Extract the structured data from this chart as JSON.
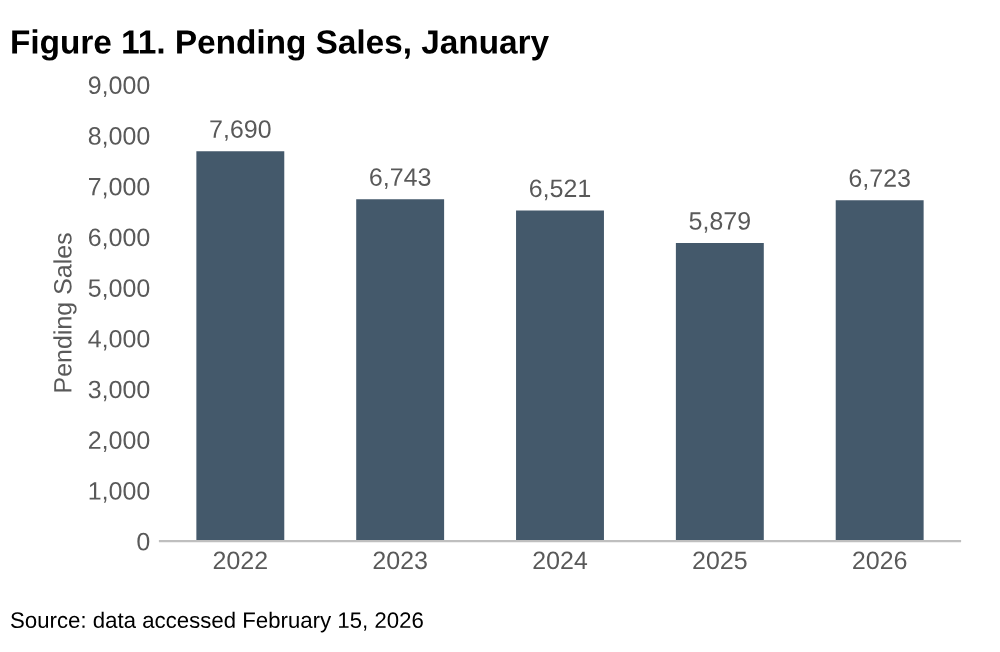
{
  "chart_data": {
    "type": "bar",
    "title": "Figure 11. Pending Sales, January",
    "ylabel": "Pending Sales",
    "categories": [
      "2022",
      "2023",
      "2024",
      "2025",
      "2026"
    ],
    "values": [
      7690,
      6743,
      6521,
      5879,
      6723
    ],
    "color": "#44596b",
    "value_labels": [
      "7,690",
      "6,743",
      "6,521",
      "5,879",
      "6,723"
    ],
    "ylim": [
      0,
      9000
    ],
    "yticks": [
      0,
      {
        "value": 1000,
        "label": "1,000"
      },
      {
        "value": 2000,
        "label": "2,000"
      },
      {
        "value": 3000,
        "label": "3,000"
      },
      {
        "value": 4000,
        "label": "4,000"
      },
      {
        "value": 5000,
        "label": "5,000"
      },
      {
        "value": 6000,
        "label": "6,000"
      },
      {
        "value": 7000,
        "label": "7,000"
      },
      {
        "value": 8000,
        "label": "8,000"
      },
      {
        "value": 9000,
        "label": "9,000"
      }
    ],
    "grid": false,
    "legend": false,
    "annotations": [
      "Source: data accessed February 15, 2026"
    ]
  }
}
